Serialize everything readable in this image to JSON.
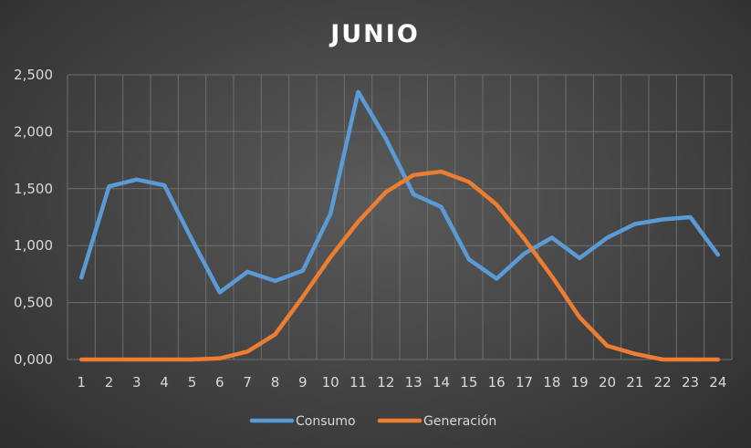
{
  "chart_data": {
    "type": "line",
    "title": "JUNIO",
    "xlabel": "",
    "ylabel": "",
    "categories": [
      "1",
      "2",
      "3",
      "4",
      "5",
      "6",
      "7",
      "8",
      "9",
      "10",
      "11",
      "12",
      "13",
      "14",
      "15",
      "16",
      "17",
      "18",
      "19",
      "20",
      "21",
      "22",
      "23",
      "24"
    ],
    "y_ticks": [
      "0,000",
      "0,500",
      "1,000",
      "1,500",
      "2,000",
      "2,500"
    ],
    "ylim": [
      0,
      2.5
    ],
    "grid": true,
    "legend_position": "bottom",
    "series": [
      {
        "name": "Consumo",
        "color": "#5b9bd5",
        "values": [
          0.72,
          1.52,
          1.58,
          1.53,
          1.05,
          0.59,
          0.77,
          0.69,
          0.78,
          1.28,
          2.35,
          1.94,
          1.45,
          1.34,
          0.88,
          0.71,
          0.93,
          1.07,
          0.89,
          1.07,
          1.19,
          1.23,
          1.25,
          0.92
        ]
      },
      {
        "name": "Generación",
        "color": "#ed7d31",
        "values": [
          0.0,
          0.0,
          0.0,
          0.0,
          0.0,
          0.01,
          0.07,
          0.22,
          0.55,
          0.9,
          1.21,
          1.47,
          1.62,
          1.65,
          1.56,
          1.36,
          1.06,
          0.73,
          0.37,
          0.12,
          0.05,
          0.0,
          0.0,
          0.0
        ]
      }
    ]
  }
}
